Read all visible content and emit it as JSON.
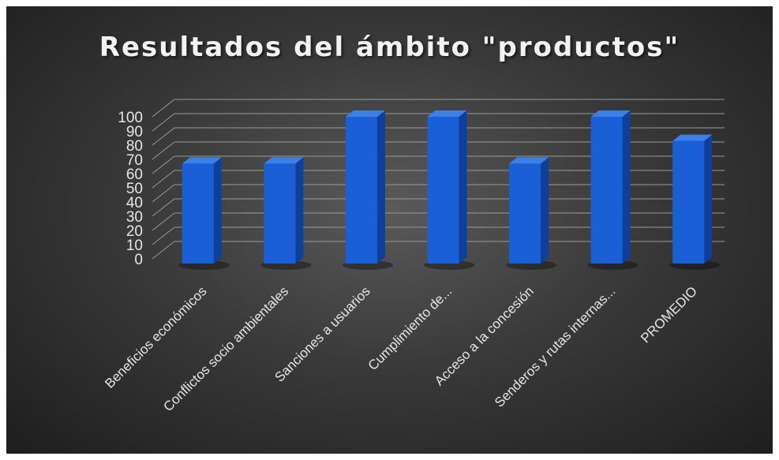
{
  "chart_data": {
    "type": "bar",
    "title": "Resultados del ámbito \"productos\"",
    "xlabel": "",
    "ylabel": "",
    "categories": [
      "Beneficios económicos",
      "Conflictos socio ambientales",
      "Sanciones a usuarios",
      "Cumplimiento de...",
      "Acceso a la concesión",
      "Senderos y rutas internas...",
      "PROMEDIO"
    ],
    "values": [
      67,
      67,
      100,
      100,
      67,
      100,
      83
    ],
    "ylim": [
      0,
      100
    ],
    "yticks": [
      0,
      10,
      20,
      30,
      40,
      50,
      60,
      70,
      80,
      90,
      100
    ],
    "grid": true,
    "legend": "none",
    "style": "3d-column",
    "colors": {
      "bar": "#1a5fd6",
      "bar_side": "#0f3f9a",
      "bar_top": "#3b7fe8",
      "grid": "#9a9a9a",
      "text": "#e6e6e6",
      "background": "#3a3a3a"
    }
  }
}
